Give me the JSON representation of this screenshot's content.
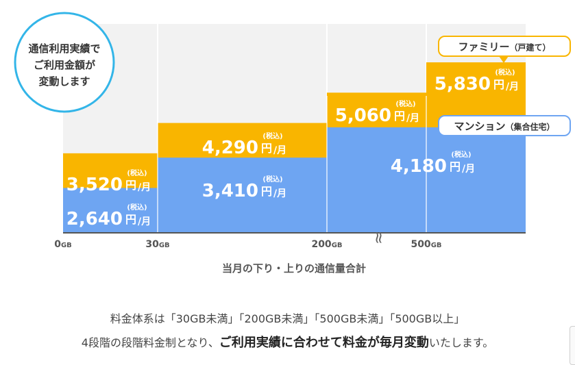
{
  "chart_data": {
    "type": "bar",
    "categories": [
      "0GB",
      "30GB",
      "200GB",
      "500GB"
    ],
    "series": [
      {
        "name": "ファミリー（戸建て）",
        "values": [
          3520,
          4290,
          5060,
          5830
        ],
        "labels": [
          "3,520",
          "4,290",
          "5,060",
          "5,830"
        ],
        "color": "#F9B500"
      },
      {
        "name": "マンション（集合住宅）",
        "values": [
          2640,
          3410,
          4180,
          4180
        ],
        "labels": [
          "2,640",
          "3,410",
          "4,180",
          ""
        ],
        "color": "#6EA5F2"
      }
    ],
    "unit_main": "円",
    "unit_sub": "/月",
    "tax_label": "(税込)",
    "xlabel": "当月の下り・上りの通信量合計",
    "tick_labels": [
      {
        "num": "0",
        "unit": "GB"
      },
      {
        "num": "30",
        "unit": "GB"
      },
      {
        "num": "200",
        "unit": "GB"
      },
      {
        "num": "500",
        "unit": "GB"
      }
    ],
    "break_mark": "≈",
    "badge_lines": [
      "通信利用実績で",
      "ご利用金額が",
      "変動します"
    ],
    "legend_family": {
      "main": "ファミリー",
      "sub": "（戸建て）"
    },
    "legend_mansion": {
      "main": "マンション",
      "sub": "（集合住宅）"
    }
  },
  "note": {
    "line1": "料金体系は「30GB未満」「200GB未満」「500GB未満」「500GB以上」",
    "line2_pre": "4段階の段階料金制となり、",
    "line2_em1": "ご利用実績に合わせて料金が",
    "line2_em2": "毎月変動",
    "line2_post": "いたします。"
  },
  "colors": {
    "family": "#F9B500",
    "mansion": "#6EA5F2",
    "badge_border": "#33B5E8",
    "background_panel": "#F2F2F2",
    "axis": "#555555"
  }
}
